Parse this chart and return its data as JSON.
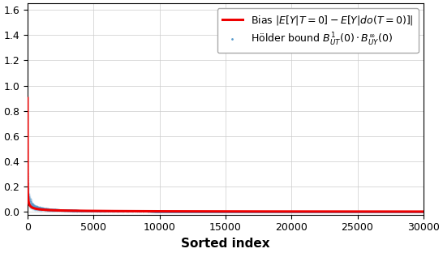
{
  "n_points": 30000,
  "bias_amplitude": 0.9,
  "bias_power": 0.55,
  "scatter_color": "#5599cc",
  "scatter_alpha": 0.12,
  "scatter_size": 1.5,
  "line_color": "#ee0000",
  "line_width": 2.2,
  "xlim": [
    0,
    30000
  ],
  "ylim": [
    -0.02,
    1.65
  ],
  "yticks": [
    0.0,
    0.2,
    0.4,
    0.6,
    0.8,
    1.0,
    1.2,
    1.4,
    1.6
  ],
  "xticks": [
    0,
    5000,
    10000,
    15000,
    20000,
    25000,
    30000
  ],
  "xlabel": "Sorted index",
  "xlabel_fontsize": 11,
  "tick_fontsize": 9,
  "legend_bias_label": "Bias $|E[Y|T=0] - E[Y|do(T=0)]|$",
  "legend_holder_label": "Hölder bound $B^1_{UT}(0) \\cdot B^\\infty_{UY}(0)$",
  "legend_fontsize": 9,
  "background_color": "#ffffff",
  "grid": true,
  "grid_color": "#cccccc",
  "grid_linewidth": 0.5
}
